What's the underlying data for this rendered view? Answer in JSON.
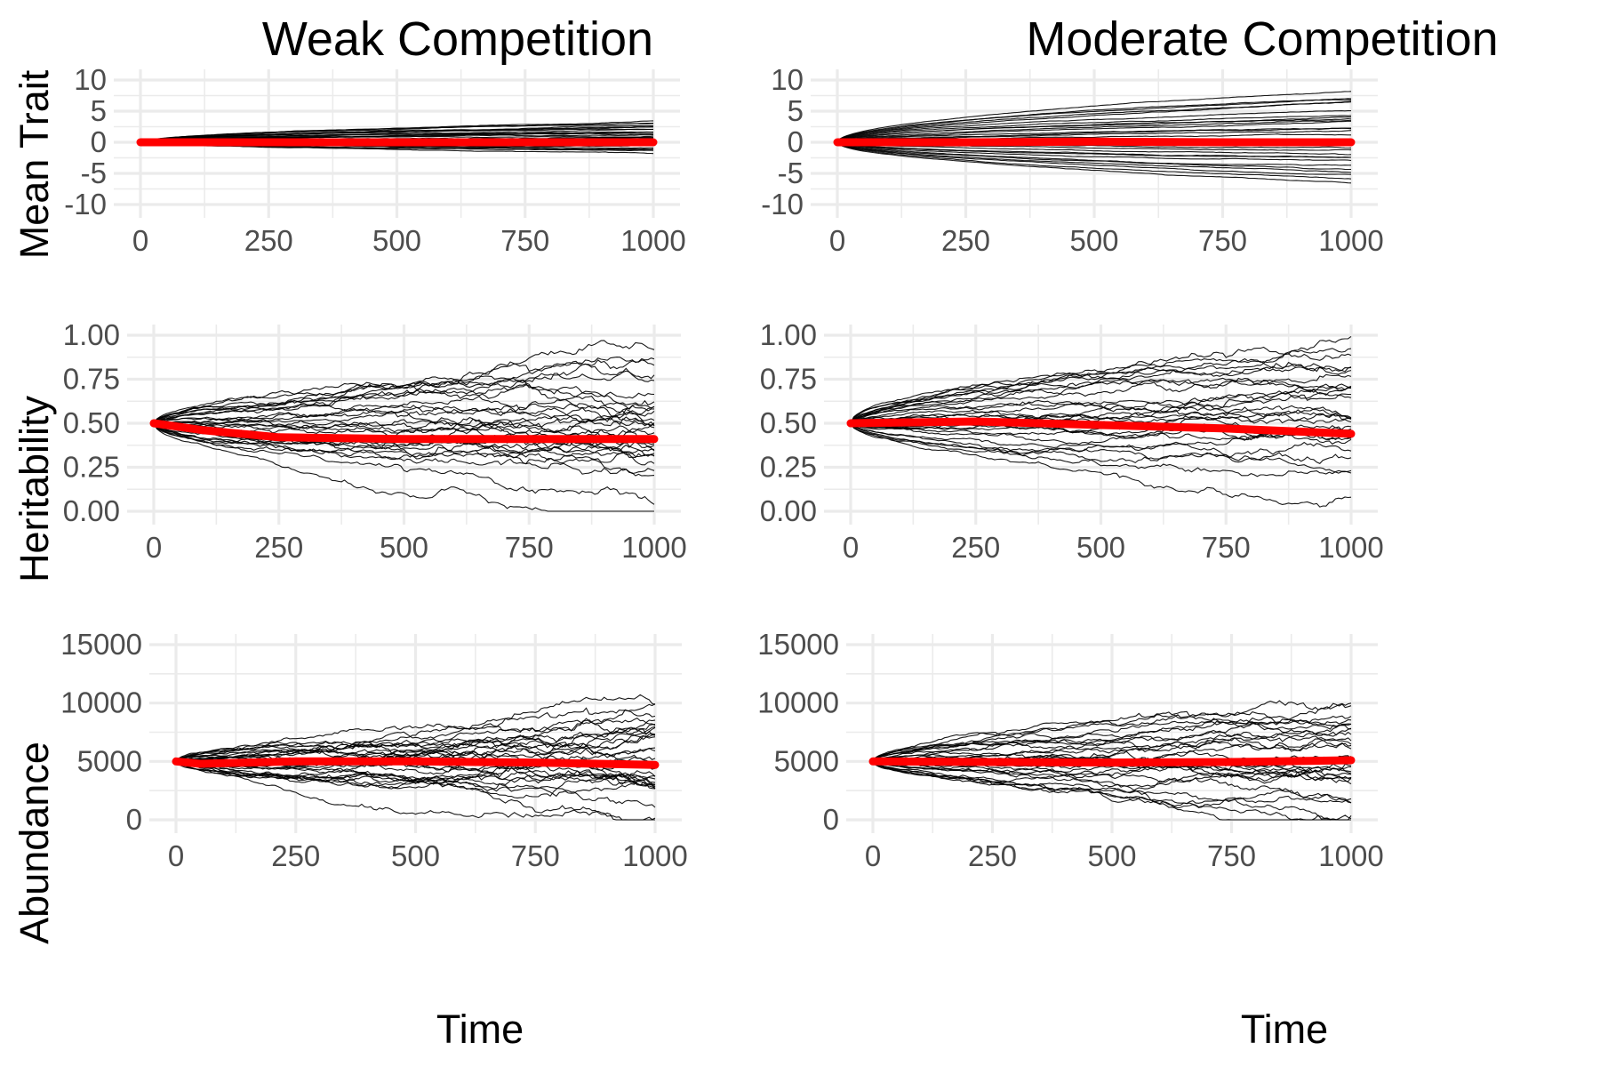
{
  "figure": {
    "column_titles": [
      "Weak Competition",
      "Moderate Competition"
    ],
    "row_labels": [
      "Mean Trait",
      "Heritability",
      "Abundance"
    ],
    "x_label": "Time"
  },
  "colors": {
    "replicate_line": "#000000",
    "mean_line": "#ff0000",
    "grid": "#ebebeb",
    "tick_text": "#4d4d4d"
  },
  "chart_data": [
    {
      "type": "line",
      "panel": "weak-mean-trait",
      "title": "Weak Competition",
      "ylabel": "Mean Trait",
      "xlabel": "",
      "xlim": [
        0,
        1000
      ],
      "ylim": [
        -10,
        10
      ],
      "x_ticks": [
        0,
        250,
        500,
        750,
        1000
      ],
      "x_tick_labels": [
        "0",
        "250",
        "500",
        "750",
        "1000"
      ],
      "y_ticks": [
        -10,
        -5,
        0,
        5,
        10
      ],
      "y_tick_labels": [
        "-10",
        "-5",
        "0",
        "5",
        "10"
      ],
      "grid": true,
      "replicates": 30,
      "replicate_start": 0,
      "replicate_end_range": [
        -1.5,
        3.2
      ],
      "replicate_noise": 0.1,
      "mean_series": {
        "x": [
          0,
          250,
          500,
          750,
          1000
        ],
        "y": [
          0,
          0,
          0,
          0,
          0
        ]
      }
    },
    {
      "type": "line",
      "panel": "moderate-mean-trait",
      "title": "Moderate Competition",
      "ylabel": "",
      "xlabel": "",
      "xlim": [
        0,
        1000
      ],
      "ylim": [
        -10,
        10
      ],
      "x_ticks": [
        0,
        250,
        500,
        750,
        1000
      ],
      "x_tick_labels": [
        "0",
        "250",
        "500",
        "750",
        "1000"
      ],
      "y_ticks": [
        -10,
        -5,
        0,
        5,
        10
      ],
      "y_tick_labels": [
        "-10",
        "-5",
        "0",
        "5",
        "10"
      ],
      "grid": true,
      "replicates": 30,
      "replicate_start": 0,
      "replicate_end_range": [
        -6.3,
        7.8
      ],
      "replicate_noise": 0.12,
      "mean_series": {
        "x": [
          0,
          250,
          500,
          750,
          1000
        ],
        "y": [
          0,
          0,
          0.1,
          0,
          0
        ]
      }
    },
    {
      "type": "line",
      "panel": "weak-heritability",
      "title": "",
      "ylabel": "Heritability",
      "xlabel": "",
      "xlim": [
        0,
        1000
      ],
      "ylim": [
        0,
        1
      ],
      "x_ticks": [
        0,
        250,
        500,
        750,
        1000
      ],
      "x_tick_labels": [
        "0",
        "250",
        "500",
        "750",
        "1000"
      ],
      "y_ticks": [
        0,
        0.25,
        0.5,
        0.75,
        1
      ],
      "y_tick_labels": [
        "0.00",
        "0.25",
        "0.50",
        "0.75",
        "1.00"
      ],
      "grid": true,
      "replicates": 30,
      "replicate_start": 0.5,
      "replicate_end_range": [
        0.11,
        0.82
      ],
      "replicate_noise": 0.05,
      "mean_series": {
        "x": [
          0,
          100,
          250,
          500,
          750,
          1000
        ],
        "y": [
          0.5,
          0.46,
          0.42,
          0.41,
          0.41,
          0.41
        ]
      }
    },
    {
      "type": "line",
      "panel": "moderate-heritability",
      "title": "",
      "ylabel": "",
      "xlabel": "",
      "xlim": [
        0,
        1000
      ],
      "ylim": [
        0,
        1
      ],
      "x_ticks": [
        0,
        250,
        500,
        750,
        1000
      ],
      "x_tick_labels": [
        "0",
        "250",
        "500",
        "750",
        "1000"
      ],
      "y_ticks": [
        0,
        0.25,
        0.5,
        0.75,
        1
      ],
      "y_tick_labels": [
        "0.00",
        "0.25",
        "0.50",
        "0.75",
        "1.00"
      ],
      "grid": true,
      "replicates": 30,
      "replicate_start": 0.5,
      "replicate_end_range": [
        0.15,
        0.95
      ],
      "replicate_noise": 0.04,
      "mean_series": {
        "x": [
          0,
          250,
          500,
          750,
          1000
        ],
        "y": [
          0.5,
          0.51,
          0.49,
          0.47,
          0.44
        ]
      }
    },
    {
      "type": "line",
      "panel": "weak-abundance",
      "title": "",
      "ylabel": "Abundance",
      "xlabel": "Time",
      "xlim": [
        0,
        1000
      ],
      "ylim": [
        0,
        15000
      ],
      "x_ticks": [
        0,
        250,
        500,
        750,
        1000
      ],
      "x_tick_labels": [
        "0",
        "250",
        "500",
        "750",
        "1000"
      ],
      "y_ticks": [
        0,
        5000,
        10000,
        15000
      ],
      "y_tick_labels": [
        "0",
        "5000",
        "10000",
        "15000"
      ],
      "grid": true,
      "replicates": 30,
      "replicate_start": 5000,
      "replicate_end_range": [
        1500,
        8800
      ],
      "replicate_noise": 700,
      "mean_series": {
        "x": [
          0,
          50,
          250,
          500,
          750,
          1000
        ],
        "y": [
          5000,
          4800,
          5000,
          5000,
          4900,
          4700
        ]
      }
    },
    {
      "type": "line",
      "panel": "moderate-abundance",
      "title": "",
      "ylabel": "",
      "xlabel": "Time",
      "xlim": [
        0,
        1000
      ],
      "ylim": [
        0,
        15000
      ],
      "x_ticks": [
        0,
        250,
        500,
        750,
        1000
      ],
      "x_tick_labels": [
        "0",
        "250",
        "500",
        "750",
        "1000"
      ],
      "y_ticks": [
        0,
        5000,
        10000,
        15000
      ],
      "y_tick_labels": [
        "0",
        "5000",
        "10000",
        "15000"
      ],
      "grid": true,
      "replicates": 30,
      "replicate_start": 5000,
      "replicate_end_range": [
        900,
        9500
      ],
      "replicate_noise": 600,
      "mean_series": {
        "x": [
          0,
          250,
          500,
          750,
          1000
        ],
        "y": [
          5000,
          4950,
          4900,
          4950,
          5100
        ]
      }
    }
  ]
}
